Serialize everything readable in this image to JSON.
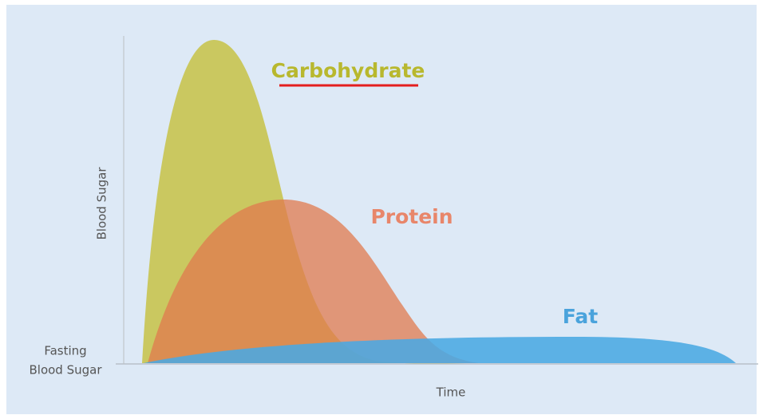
{
  "axes": {
    "y_label": "Blood Sugar",
    "x_label": "Time",
    "baseline_label": [
      "Fasting",
      "Blood Sugar"
    ]
  },
  "curves": {
    "carbohydrate": "Carbohydrate",
    "protein": "Protein",
    "fat": "Fat"
  }
}
